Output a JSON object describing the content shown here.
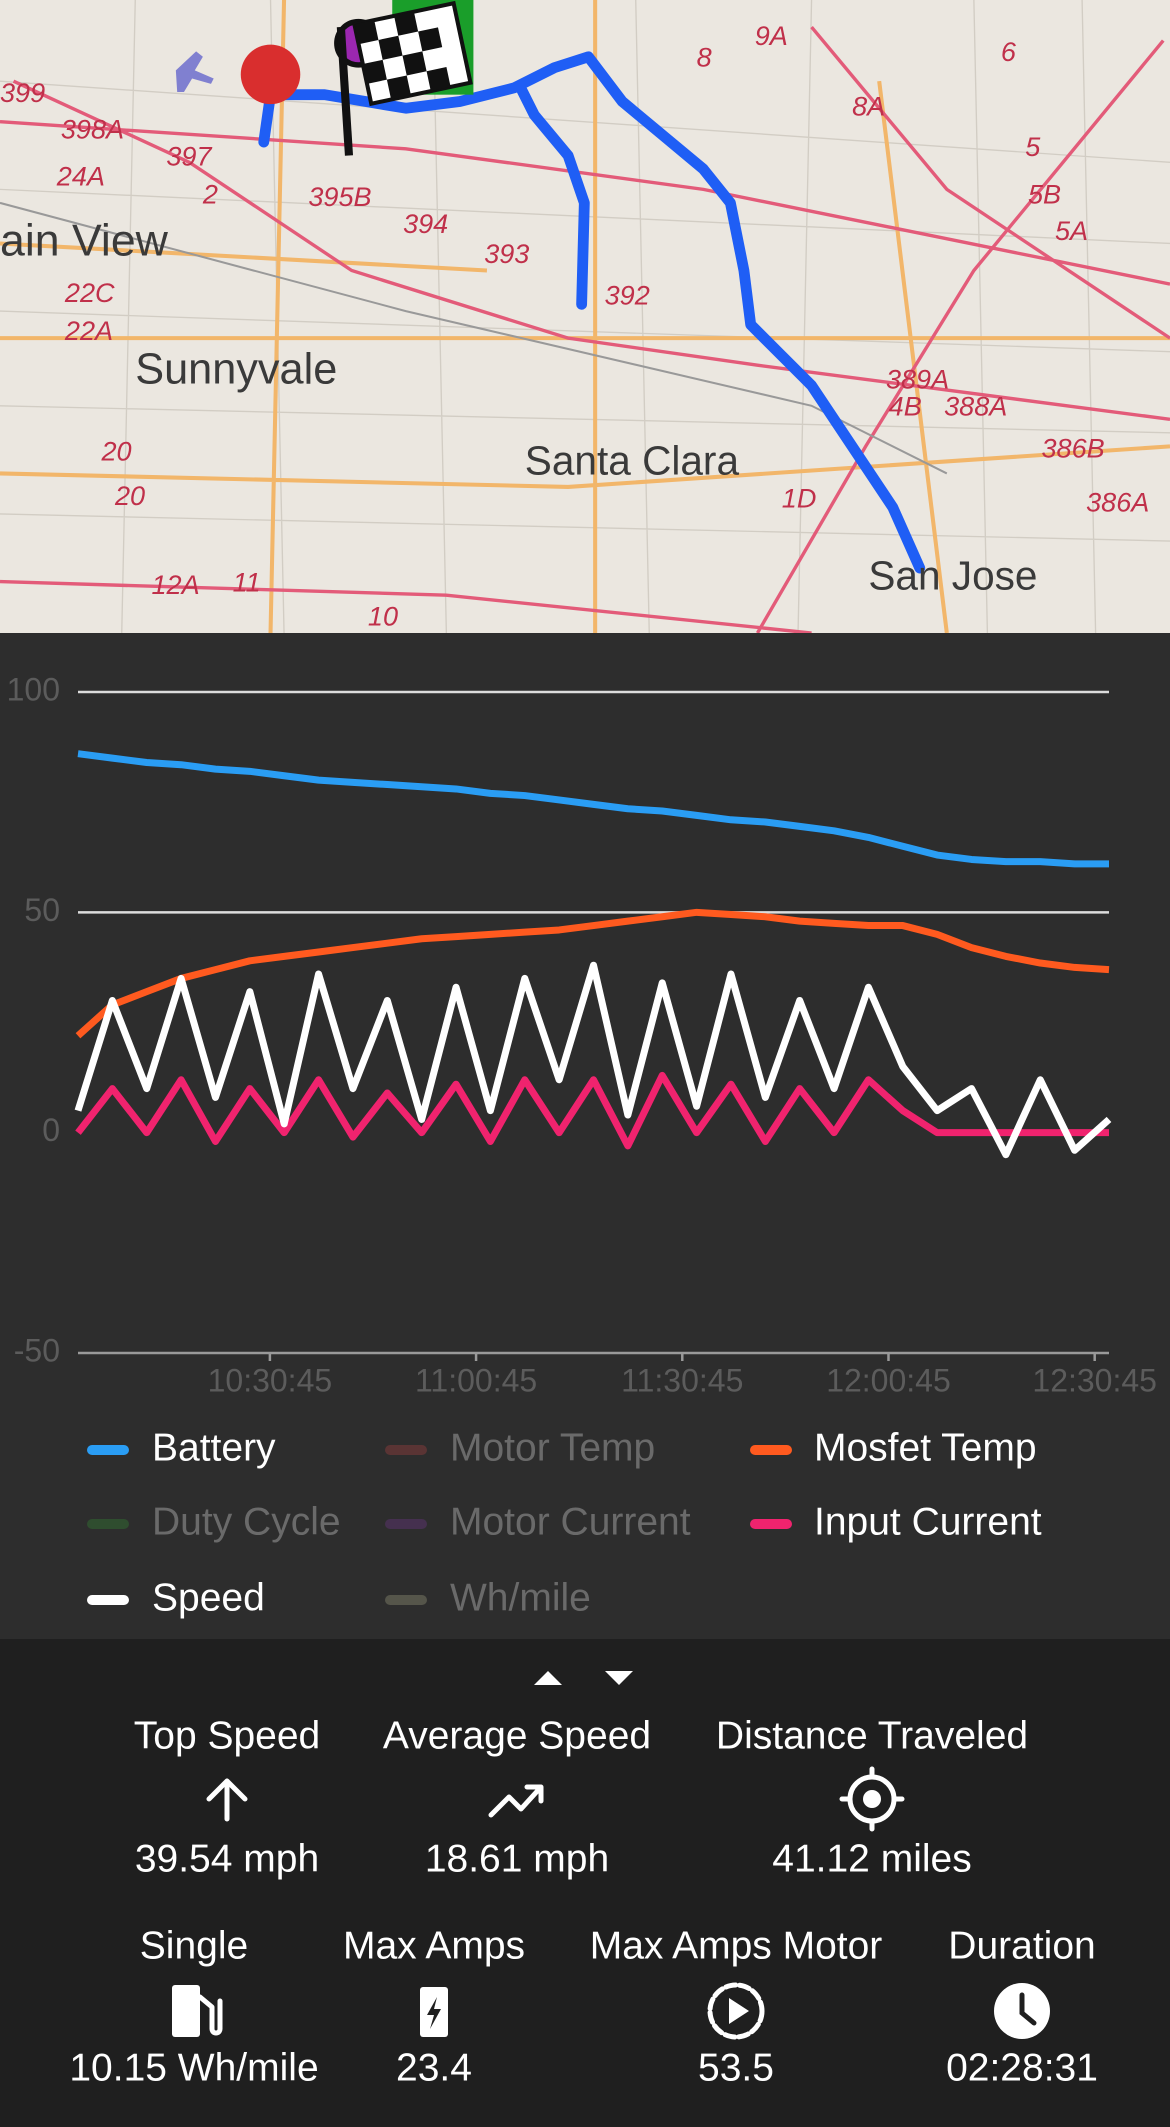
{
  "map": {
    "places": [
      "ain View",
      "Sunnyvale",
      "Santa Clara",
      "San Jose"
    ],
    "route_labels": [
      "399",
      "398A",
      "397",
      "24A",
      "395B",
      "394",
      "393",
      "392",
      "8",
      "9A",
      "8A",
      "6",
      "5",
      "5B",
      "5A",
      "20",
      "20",
      "22C",
      "22A",
      "10",
      "1D",
      "389A",
      "4B",
      "388A",
      "386B",
      "386A",
      "12A",
      "11",
      "2"
    ]
  },
  "chart_data": {
    "type": "line",
    "x": [
      "10:02:50",
      "10:07:50",
      "10:12:50",
      "10:17:50",
      "10:22:50",
      "10:27:50",
      "10:32:50",
      "10:37:50",
      "10:42:50",
      "10:47:50",
      "10:52:50",
      "10:57:50",
      "11:02:50",
      "11:07:50",
      "11:12:50",
      "11:17:50",
      "11:22:50",
      "11:27:50",
      "11:32:50",
      "11:37:50",
      "11:42:50",
      "11:47:50",
      "11:52:50",
      "11:57:50",
      "12:02:50",
      "12:07:50",
      "12:12:50",
      "12:17:50",
      "12:22:50",
      "12:27:50",
      "12:32:50"
    ],
    "xlim": [
      "10:02:50",
      "12:32:50"
    ],
    "xticks": [
      "10:30:45",
      "11:00:45",
      "11:30:45",
      "12:00:45",
      "12:30:45"
    ],
    "ylim": [
      -50,
      100
    ],
    "yticks": [
      -50,
      0,
      50,
      100
    ],
    "grid": true,
    "series": [
      {
        "name": "Battery",
        "color": "#2a9df4",
        "visible": true,
        "values": [
          86,
          85,
          84,
          83.5,
          82.5,
          82,
          81,
          80,
          79.5,
          79,
          78.5,
          78,
          77,
          76.5,
          75.5,
          74.5,
          73.5,
          73,
          72,
          71,
          70.5,
          69.5,
          68.5,
          67,
          65,
          63,
          62,
          61.5,
          61.5,
          61,
          61
        ]
      },
      {
        "name": "Motor Temp",
        "color": "#5a3434",
        "visible": false
      },
      {
        "name": "Mosfet Temp",
        "color": "#ff5a1f",
        "visible": true,
        "values": [
          22,
          29,
          32,
          35,
          37,
          39,
          40,
          41,
          42,
          43,
          44,
          44.5,
          45,
          45.5,
          46,
          47,
          48,
          49,
          50,
          49.5,
          49,
          48,
          47.5,
          47,
          47,
          45,
          42,
          40,
          38.5,
          37.5,
          37
        ]
      },
      {
        "name": "Duty Cycle",
        "color": "#2f4d2f",
        "visible": false
      },
      {
        "name": "Motor Current",
        "color": "#45304f",
        "visible": false
      },
      {
        "name": "Input Current",
        "color": "#f0236e",
        "visible": true,
        "values": [
          0,
          10,
          0,
          12,
          -2,
          10,
          0,
          12,
          -1,
          9,
          0,
          11,
          -2,
          12,
          0,
          12,
          -3,
          13,
          0,
          11,
          -2,
          10,
          0,
          12,
          5,
          0,
          0,
          0,
          0,
          0,
          0
        ]
      },
      {
        "name": "Speed",
        "color": "#ffffff",
        "visible": true,
        "values": [
          5,
          30,
          10,
          35,
          8,
          32,
          2,
          36,
          10,
          30,
          3,
          33,
          5,
          35,
          12,
          38,
          4,
          34,
          6,
          36,
          8,
          30,
          10,
          33,
          15,
          5,
          10,
          -5,
          12,
          -4,
          3
        ]
      },
      {
        "name": "Wh/mile",
        "color": "#55554a",
        "visible": false
      }
    ]
  },
  "stats": {
    "row1": [
      {
        "label": "Top Speed",
        "value": "39.54 mph"
      },
      {
        "label": "Average Speed",
        "value": "18.61 mph"
      },
      {
        "label": "Distance Traveled",
        "value": "41.12 miles"
      }
    ],
    "row2": [
      {
        "label": "Single",
        "value": "10.15 Wh/mile"
      },
      {
        "label": "Max Amps",
        "value": "23.4"
      },
      {
        "label": "Max Amps Motor",
        "value": "53.5"
      },
      {
        "label": "Duration",
        "value": "02:28:31"
      }
    ]
  }
}
